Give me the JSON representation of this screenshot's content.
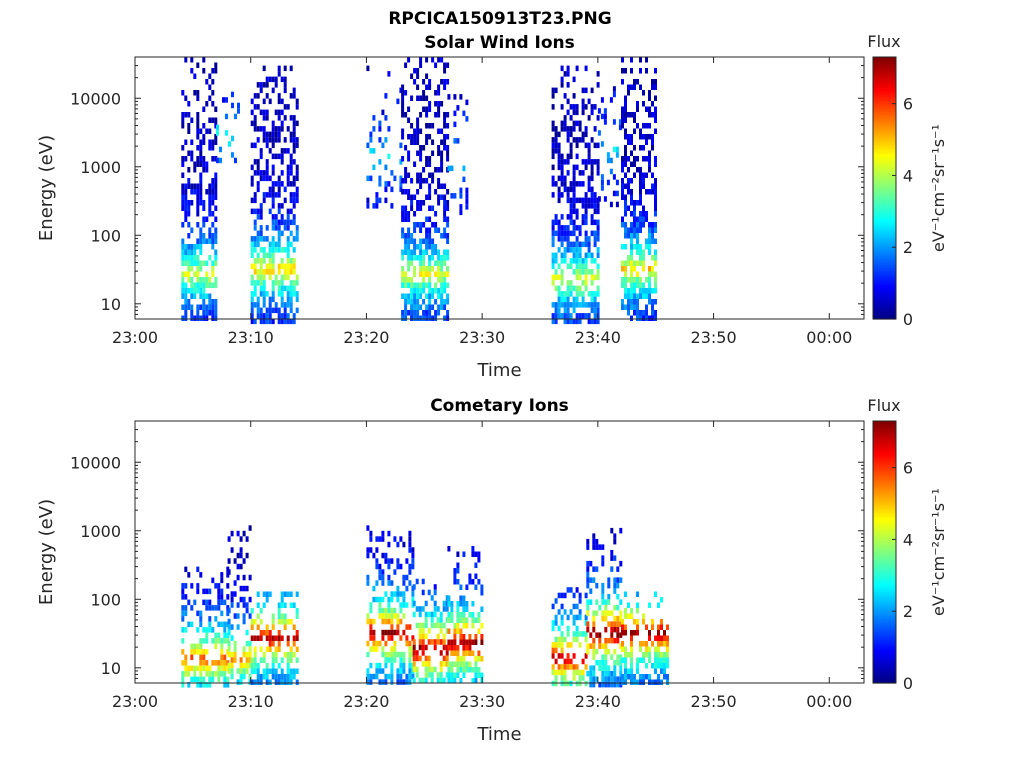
{
  "figure": {
    "title": "RPCICA150913T23.PNG"
  },
  "colormap": {
    "name": "jet",
    "stops": [
      "#00007f",
      "#0000ff",
      "#007fff",
      "#00ffff",
      "#7fff7f",
      "#ffff00",
      "#ff7f00",
      "#ff0000",
      "#7f0000"
    ]
  },
  "chart_data": [
    {
      "type": "heatmap",
      "title": "Solar Wind Ions",
      "xlabel": "Time",
      "ylabel": "Energy (eV)",
      "yscale": "log",
      "ylim": [
        6,
        40000
      ],
      "xlim": [
        "23:00",
        "00:03"
      ],
      "xticks": [
        "23:00",
        "23:10",
        "23:20",
        "23:30",
        "23:40",
        "23:50",
        "00:00"
      ],
      "yticks": [
        10,
        100,
        1000,
        10000
      ],
      "ytick_labels": [
        "10",
        "100",
        "1000",
        "10000"
      ],
      "colorbar": {
        "title": "Flux",
        "label": "eV⁻¹cm⁻²sr⁻¹s⁻¹",
        "range": [
          0,
          7.3
        ],
        "ticks": [
          "0",
          "2",
          "4",
          "6"
        ]
      },
      "bursts": [
        {
          "start": "23:04",
          "end": "23:07",
          "emin": 6,
          "emax": 40000,
          "peak": 4.0,
          "peak_energy": 30,
          "density": 0.7
        },
        {
          "start": "23:07",
          "end": "23:09",
          "emin": 1200,
          "emax": 15000,
          "peak": 2.5,
          "peak_energy": 3000,
          "density": 0.2
        },
        {
          "start": "23:10",
          "end": "23:14",
          "emin": 6,
          "emax": 30000,
          "peak": 4.5,
          "peak_energy": 35,
          "density": 0.7
        },
        {
          "start": "23:20",
          "end": "23:23",
          "emin": 250,
          "emax": 30000,
          "peak": 2.2,
          "peak_energy": 1500,
          "density": 0.2
        },
        {
          "start": "23:23",
          "end": "23:27",
          "emin": 6,
          "emax": 40000,
          "peak": 4.0,
          "peak_energy": 30,
          "density": 0.7
        },
        {
          "start": "23:27",
          "end": "23:29",
          "emin": 200,
          "emax": 20000,
          "peak": 2.2,
          "peak_energy": 1500,
          "density": 0.15
        },
        {
          "start": "23:36",
          "end": "23:40",
          "emin": 6,
          "emax": 30000,
          "peak": 4.0,
          "peak_energy": 25,
          "density": 0.7
        },
        {
          "start": "23:40",
          "end": "23:42",
          "emin": 300,
          "emax": 15000,
          "peak": 2.2,
          "peak_energy": 2000,
          "density": 0.2
        },
        {
          "start": "23:42",
          "end": "23:45",
          "emin": 6,
          "emax": 40000,
          "peak": 4.5,
          "peak_energy": 35,
          "density": 0.7
        }
      ]
    },
    {
      "type": "heatmap",
      "title": "Cometary Ions",
      "xlabel": "Time",
      "ylabel": "Energy (eV)",
      "yscale": "log",
      "ylim": [
        6,
        40000
      ],
      "xlim": [
        "23:00",
        "00:03"
      ],
      "xticks": [
        "23:00",
        "23:10",
        "23:20",
        "23:30",
        "23:40",
        "23:50",
        "00:00"
      ],
      "yticks": [
        10,
        100,
        1000,
        10000
      ],
      "ytick_labels": [
        "10",
        "100",
        "1000",
        "10000"
      ],
      "colorbar": {
        "title": "Flux",
        "label": "eV⁻¹cm⁻²sr⁻¹s⁻¹",
        "range": [
          0,
          7.3
        ],
        "ticks": [
          "0",
          "2",
          "4",
          "6"
        ]
      },
      "bursts": [
        {
          "start": "23:04",
          "end": "23:08",
          "emin": 6,
          "emax": 300,
          "peak": 5.5,
          "peak_energy": 15,
          "density": 0.6
        },
        {
          "start": "23:08",
          "end": "23:10",
          "emin": 6,
          "emax": 1200,
          "peak": 5.0,
          "peak_energy": 15,
          "density": 0.45
        },
        {
          "start": "23:10",
          "end": "23:14",
          "emin": 6,
          "emax": 130,
          "peak": 6.5,
          "peak_energy": 30,
          "density": 0.7
        },
        {
          "start": "23:20",
          "end": "23:24",
          "emin": 6,
          "emax": 1200,
          "peak": 6.8,
          "peak_energy": 35,
          "density": 0.65
        },
        {
          "start": "23:24",
          "end": "23:27",
          "emin": 6,
          "emax": 200,
          "peak": 7.0,
          "peak_energy": 20,
          "density": 0.7
        },
        {
          "start": "23:27",
          "end": "23:30",
          "emin": 6,
          "emax": 600,
          "peak": 7.0,
          "peak_energy": 25,
          "density": 0.65
        },
        {
          "start": "23:36",
          "end": "23:39",
          "emin": 6,
          "emax": 150,
          "peak": 6.5,
          "peak_energy": 15,
          "density": 0.65
        },
        {
          "start": "23:39",
          "end": "23:42",
          "emin": 6,
          "emax": 1100,
          "peak": 7.2,
          "peak_energy": 35,
          "density": 0.65
        },
        {
          "start": "23:42",
          "end": "23:46",
          "emin": 6,
          "emax": 130,
          "peak": 6.8,
          "peak_energy": 35,
          "density": 0.7
        }
      ]
    }
  ]
}
